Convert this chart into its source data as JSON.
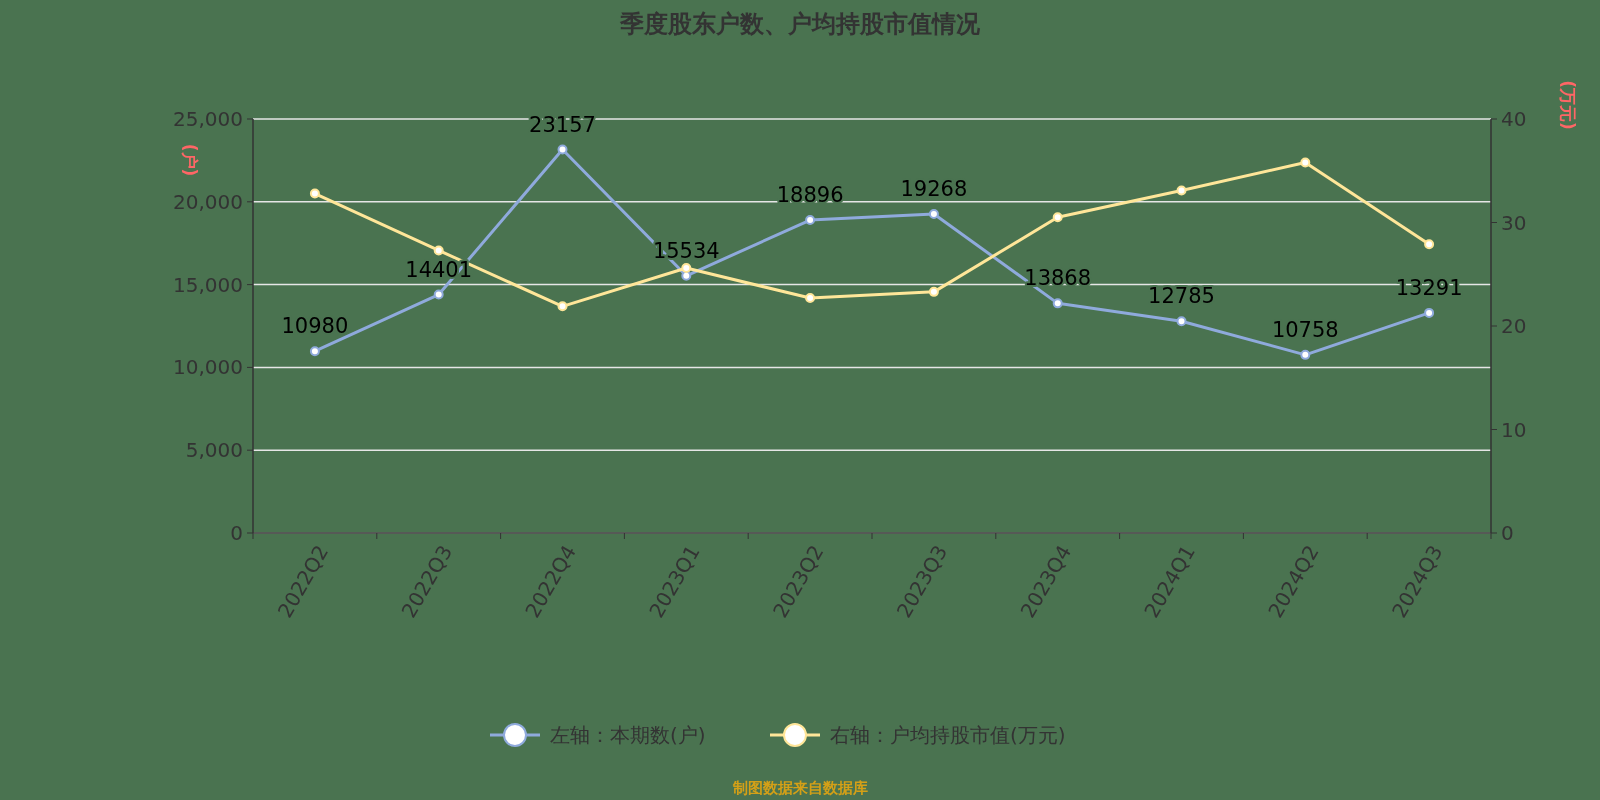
{
  "chart_data": {
    "type": "line",
    "title": "季度股东户数、户均持股市值情况",
    "ylabel": "(户)",
    "y2label": "(万元)",
    "categories": [
      "2022Q2",
      "2022Q3",
      "2022Q4",
      "2023Q1",
      "2023Q2",
      "2023Q3",
      "2023Q4",
      "2024Q1",
      "2024Q2",
      "2024Q3"
    ],
    "series": [
      {
        "name": "左轴：本期数(户)",
        "color": "#8faadc",
        "values": [
          10980,
          14401,
          23157,
          15534,
          18896,
          19268,
          13868,
          12785,
          10758,
          13291
        ],
        "value_labels": [
          "10980",
          "14401",
          "23157",
          "15534",
          "18896",
          "19268",
          "13868",
          "12785",
          "10758",
          "13291"
        ]
      },
      {
        "name": "右轴：户均持股市值(万元)",
        "color": "#ffe699",
        "axis": "y2",
        "values": [
          32.8,
          27.3,
          21.9,
          25.6,
          22.7,
          23.3,
          30.5,
          33.1,
          35.8,
          27.9
        ]
      }
    ],
    "ylim": [
      0,
      25000
    ],
    "yticks": [
      {
        "value": 0,
        "label": "0"
      },
      {
        "value": 5000,
        "label": "5,000"
      },
      {
        "value": 10000,
        "label": "10,000"
      },
      {
        "value": 15000,
        "label": "15,000"
      },
      {
        "value": 20000,
        "label": "20,000"
      },
      {
        "value": 25000,
        "label": "25,000"
      }
    ],
    "y2lim": [
      0,
      40
    ],
    "y2ticks": [
      0,
      10,
      20,
      30,
      40
    ],
    "grid": "y",
    "legend": "bottom",
    "marker": "circle",
    "line_style": "solid",
    "annotations": [
      "制图数据来自数据库"
    ]
  }
}
